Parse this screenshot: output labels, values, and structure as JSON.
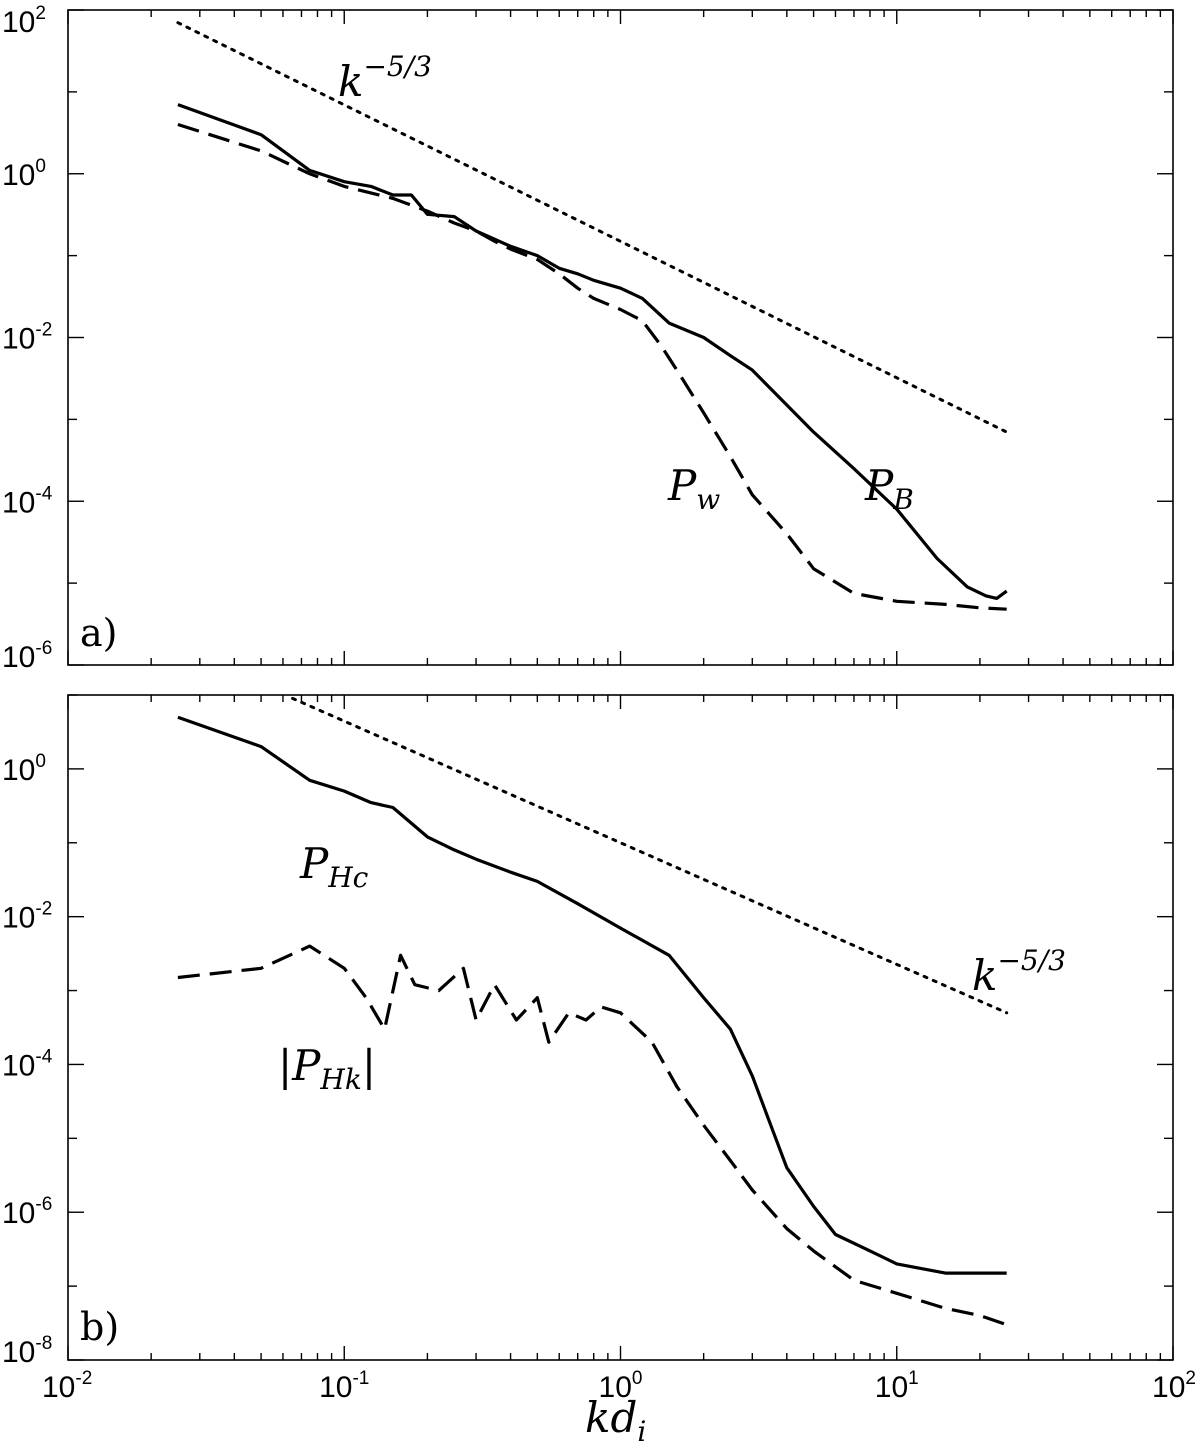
{
  "chart_data": [
    {
      "panel": "a)",
      "type": "line",
      "xscale": "log",
      "yscale": "log",
      "xlim": [
        0.01,
        100
      ],
      "ylim": [
        1e-06,
        100
      ],
      "x_ticks": [
        0.01,
        0.1,
        1,
        10,
        100
      ],
      "y_ticks": [
        {
          "base": "10",
          "exp": "2",
          "value": 100
        },
        {
          "base": "10",
          "exp": "0",
          "value": 1
        },
        {
          "base": "10",
          "exp": "-2",
          "value": 0.01
        },
        {
          "base": "10",
          "exp": "-4",
          "value": 0.0001
        },
        {
          "base": "10",
          "exp": "-6",
          "value": 1e-06
        }
      ],
      "annotations": [
        {
          "id": "slope",
          "base": "k",
          "exp": "−5/3"
        },
        {
          "id": "pw",
          "base": "P",
          "sub": "w"
        },
        {
          "id": "pb",
          "base": "P",
          "sub": "B"
        }
      ],
      "grid": false,
      "series": [
        {
          "name": "P_B",
          "style": "solid",
          "x": [
            0.025,
            0.05,
            0.075,
            0.1,
            0.125,
            0.15,
            0.175,
            0.2,
            0.25,
            0.3,
            0.4,
            0.5,
            0.6,
            0.7,
            0.8,
            1.0,
            1.2,
            1.5,
            2.0,
            2.5,
            3.0,
            4.0,
            5.0,
            7.0,
            10.0,
            14.0,
            18.0,
            21.0,
            23.0,
            25.0
          ],
          "y": [
            7.0,
            3.0,
            1.1,
            0.8,
            0.7,
            0.55,
            0.55,
            0.32,
            0.3,
            0.2,
            0.13,
            0.1,
            0.07,
            0.06,
            0.05,
            0.04,
            0.03,
            0.015,
            0.01,
            0.006,
            0.004,
            0.0015,
            0.0007,
            0.00025,
            8e-05,
            2e-05,
            9e-06,
            7e-06,
            6.5e-06,
            8e-06
          ]
        },
        {
          "name": "P_w",
          "style": "dashed",
          "x": [
            0.025,
            0.05,
            0.075,
            0.1,
            0.15,
            0.2,
            0.25,
            0.3,
            0.35,
            0.4,
            0.5,
            0.6,
            0.7,
            0.8,
            1.0,
            1.2,
            1.4,
            1.6,
            2.0,
            2.5,
            3.0,
            4.0,
            5.0,
            7.0,
            10.0,
            15.0,
            20.0,
            25.0
          ],
          "y": [
            4.0,
            1.9,
            1.0,
            0.7,
            0.5,
            0.35,
            0.25,
            0.2,
            0.15,
            0.12,
            0.09,
            0.06,
            0.04,
            0.03,
            0.022,
            0.016,
            0.008,
            0.004,
            0.0012,
            0.00035,
            0.00012,
            4e-05,
            1.5e-05,
            7.5e-06,
            6e-06,
            5.5e-06,
            5e-06,
            4.8e-06
          ]
        },
        {
          "name": "k^-5/3",
          "style": "dotted",
          "x": [
            0.025,
            25.0
          ],
          "y": [
            70,
            0.0007
          ]
        }
      ]
    },
    {
      "panel": "b)",
      "type": "line",
      "xscale": "log",
      "yscale": "log",
      "xlim": [
        0.01,
        100
      ],
      "ylim": [
        1e-08,
        10
      ],
      "x_ticks": [
        {
          "base": "10",
          "exp": "-2",
          "value": 0.01
        },
        {
          "base": "10",
          "exp": "-1",
          "value": 0.1
        },
        {
          "base": "10",
          "exp": "0",
          "value": 1
        },
        {
          "base": "10",
          "exp": "1",
          "value": 10
        },
        {
          "base": "10",
          "exp": "2",
          "value": 100
        }
      ],
      "y_ticks": [
        {
          "base": "10",
          "exp": "0",
          "value": 1
        },
        {
          "base": "10",
          "exp": "-2",
          "value": 0.01
        },
        {
          "base": "10",
          "exp": "-4",
          "value": 0.0001
        },
        {
          "base": "10",
          "exp": "-6",
          "value": 1e-06
        },
        {
          "base": "10",
          "exp": "-8",
          "value": 1e-08
        }
      ],
      "xlabel": {
        "base": "kd",
        "sub": "i"
      },
      "annotations": [
        {
          "id": "phc",
          "base": "P",
          "sub": "Hc"
        },
        {
          "id": "phk",
          "base": "|P",
          "sub": "Hk",
          "suffix": "|"
        },
        {
          "id": "slope",
          "base": "k",
          "exp": "−5/3"
        }
      ],
      "grid": false,
      "series": [
        {
          "name": "P_Hc",
          "style": "solid",
          "x": [
            0.025,
            0.05,
            0.075,
            0.1,
            0.125,
            0.15,
            0.2,
            0.25,
            0.3,
            0.4,
            0.5,
            0.7,
            1.0,
            1.5,
            2.0,
            2.5,
            3.0,
            3.5,
            4.0,
            5.0,
            6.0,
            8.0,
            10.0,
            15.0,
            20.0,
            25.0
          ],
          "y": [
            5.0,
            2.0,
            0.7,
            0.5,
            0.35,
            0.3,
            0.12,
            0.08,
            0.06,
            0.04,
            0.03,
            0.015,
            0.007,
            0.003,
            0.0008,
            0.0003,
            7e-05,
            1.5e-05,
            4e-06,
            1.2e-06,
            5e-07,
            3e-07,
            2e-07,
            1.5e-07,
            1.5e-07,
            1.5e-07
          ]
        },
        {
          "name": "|P_Hk|",
          "style": "dashed",
          "x": [
            0.025,
            0.05,
            0.075,
            0.1,
            0.12,
            0.14,
            0.16,
            0.18,
            0.22,
            0.27,
            0.3,
            0.35,
            0.42,
            0.5,
            0.55,
            0.65,
            0.75,
            0.85,
            1.0,
            1.3,
            1.6,
            2.0,
            2.5,
            3.0,
            4.0,
            5.0,
            7.0,
            10.0,
            15.0,
            20.0,
            25.0
          ],
          "y": [
            0.0015,
            0.002,
            0.004,
            0.002,
            0.0008,
            0.0003,
            0.003,
            0.0012,
            0.001,
            0.002,
            0.0004,
            0.0012,
            0.0004,
            0.0008,
            0.0002,
            0.0005,
            0.0004,
            0.0006,
            0.0005,
            0.0002,
            5e-05,
            1.5e-05,
            5e-06,
            2e-06,
            6e-07,
            3e-07,
            1.2e-07,
            8e-08,
            5e-08,
            4e-08,
            3e-08
          ]
        },
        {
          "name": "k^-5/3",
          "style": "dotted",
          "x": [
            0.065,
            25.0
          ],
          "y": [
            9.0,
            0.0005
          ]
        }
      ]
    }
  ]
}
